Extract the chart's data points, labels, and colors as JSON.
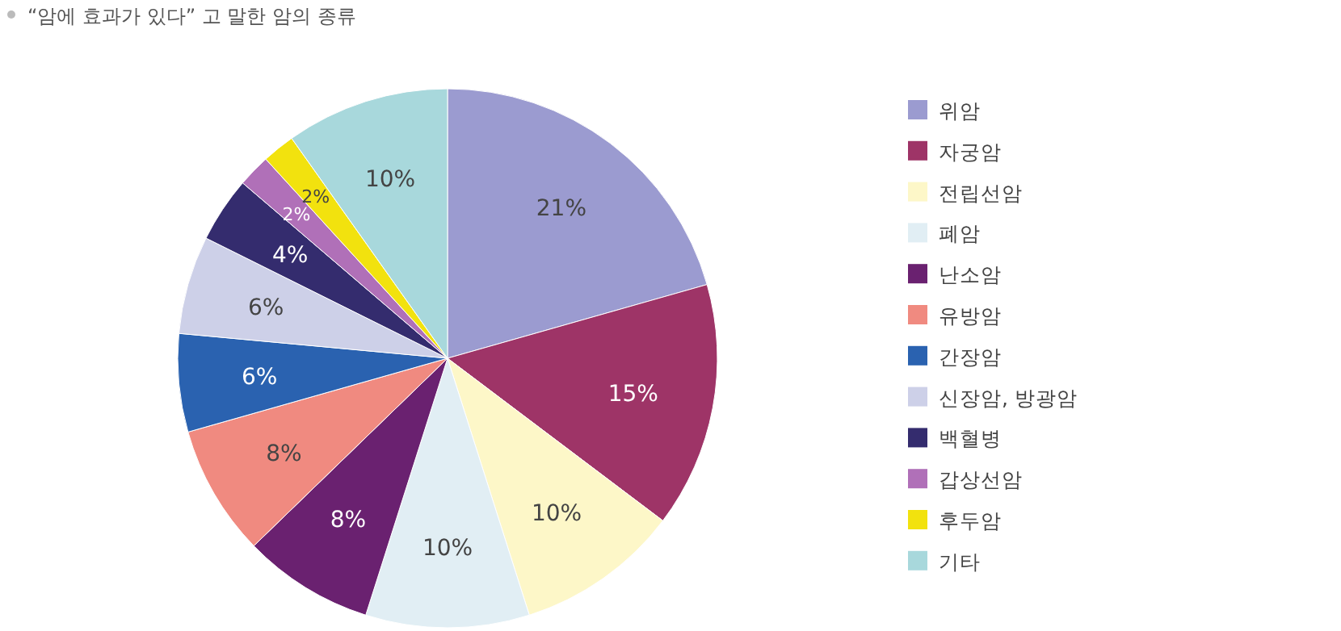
{
  "chart_data": {
    "type": "pie",
    "title": "“암에 효과가 있다” 고 말한 암의 종류",
    "categories": [
      "위암",
      "자궁암",
      "전립선암",
      "폐암",
      "난소암",
      "유방암",
      "간장암",
      "신장암, 방광암",
      "백혈병",
      "갑상선암",
      "후두암",
      "기타"
    ],
    "values": [
      21,
      15,
      10,
      10,
      8,
      8,
      6,
      6,
      4,
      2,
      2,
      10
    ],
    "value_labels": [
      "21%",
      "15%",
      "10%",
      "10%",
      "8%",
      "8%",
      "6%",
      "6%",
      "4%",
      "2%",
      "2%",
      "10%"
    ],
    "colors": [
      "#9b9bd0",
      "#9e3467",
      "#fdf7c8",
      "#e1eef4",
      "#6a2170",
      "#f08a80",
      "#2a62b0",
      "#cdd0e8",
      "#342c6e",
      "#b070b8",
      "#f2e20e",
      "#a8d8dc"
    ],
    "legend": "right"
  }
}
